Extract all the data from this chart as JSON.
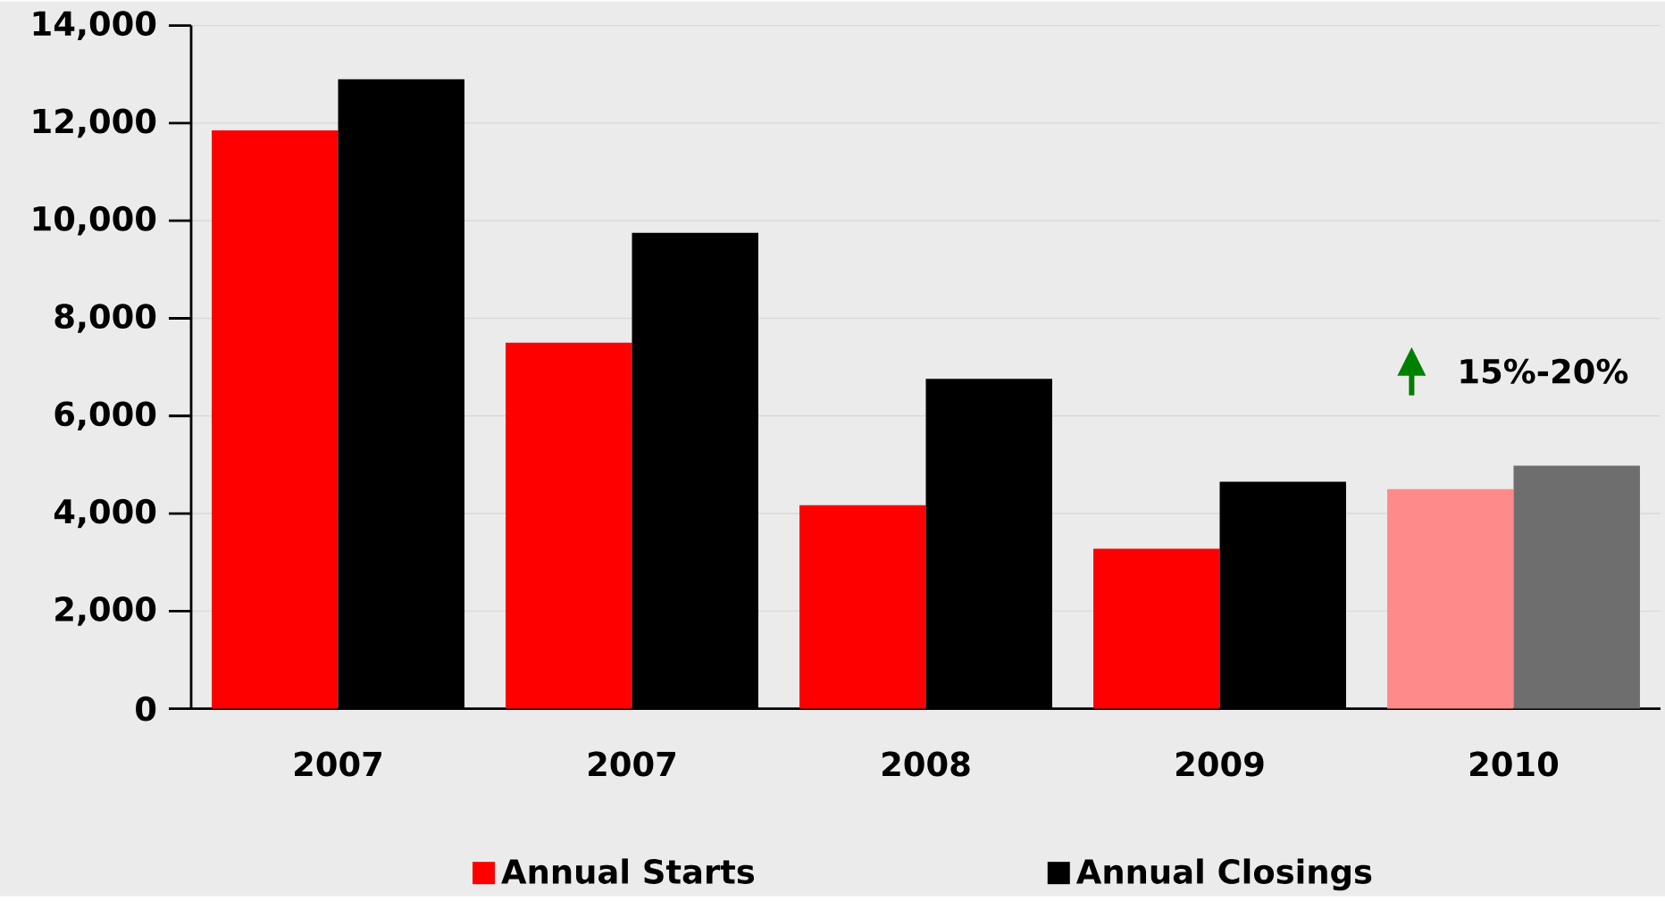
{
  "chart_data": {
    "type": "bar",
    "categories": [
      "2007",
      "2007",
      "2008",
      "2009",
      "2010"
    ],
    "series": [
      {
        "name": "Annual Starts",
        "color": "#ff0000",
        "colors": [
          "#ff0000",
          "#ff0000",
          "#ff0000",
          "#ff0000",
          "#ff8a8a"
        ],
        "values": [
          11850,
          7500,
          4170,
          3280,
          4500
        ]
      },
      {
        "name": "Annual Closings",
        "color": "#000000",
        "colors": [
          "#000000",
          "#000000",
          "#000000",
          "#000000",
          "#6e6e6e"
        ],
        "values": [
          12900,
          9750,
          6760,
          4650,
          4980
        ]
      }
    ],
    "ylim": [
      0,
      14000
    ],
    "yticks": [
      {
        "value": 0,
        "label": "0"
      },
      {
        "value": 2000,
        "label": "2,000"
      },
      {
        "value": 4000,
        "label": "4,000"
      },
      {
        "value": 6000,
        "label": "6,000"
      },
      {
        "value": 8000,
        "label": "8,000"
      },
      {
        "value": 10000,
        "label": "10,000"
      },
      {
        "value": 12000,
        "label": "12,000"
      },
      {
        "value": 14000,
        "label": "14,000"
      }
    ],
    "grid": "y",
    "legend": "bottom",
    "annotations": [
      "15%-20%"
    ]
  }
}
